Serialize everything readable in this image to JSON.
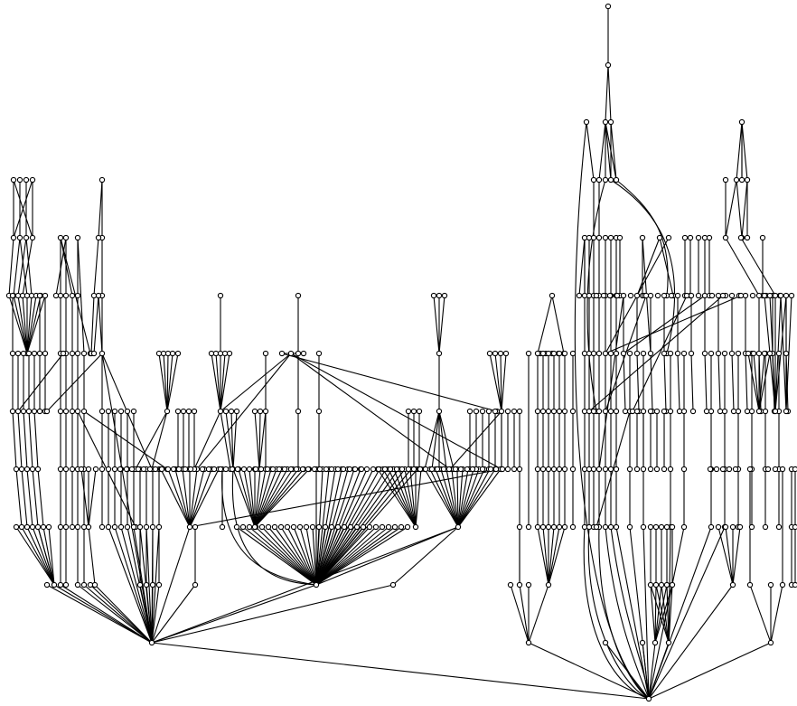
{
  "diagram": {
    "type": "layered-directed-graph",
    "labels_visible": false,
    "colors": {
      "background": "#ffffff",
      "edge": "#000000",
      "node_fill": "#ffffff",
      "node_stroke": "#000000"
    },
    "node_shape": "circle"
  }
}
